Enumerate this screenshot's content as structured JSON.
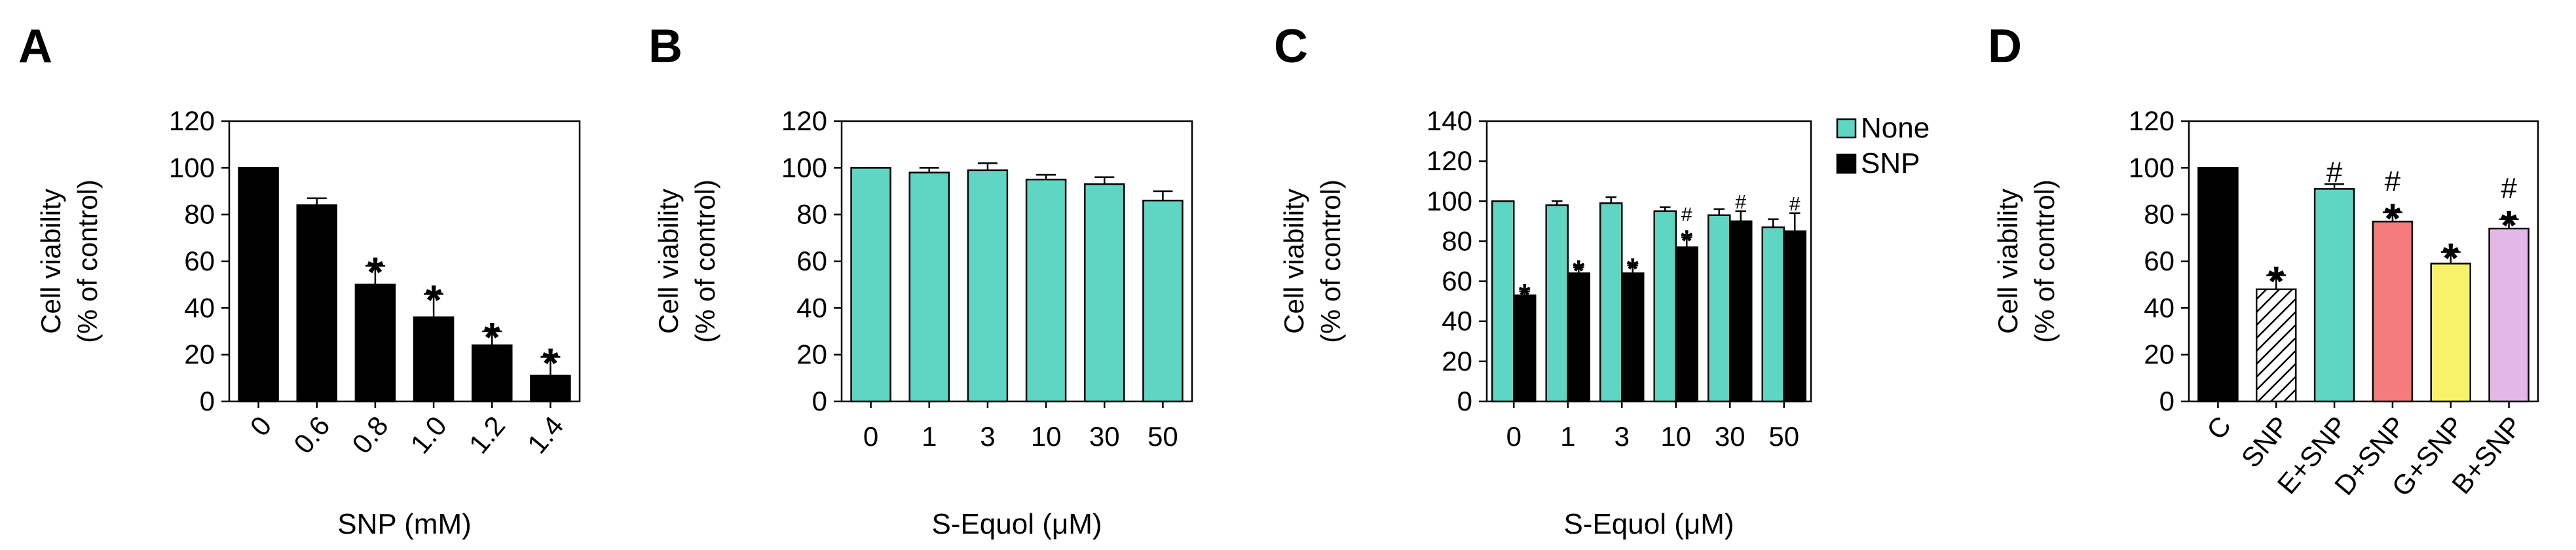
{
  "colors": {
    "black": "#000000",
    "teal": "#5ED6C3",
    "salmon": "#F47C7C",
    "yellow": "#F8F26A",
    "lavender": "#E3B8E8",
    "hatched": "hatched-black-white"
  },
  "chart_data": [
    {
      "panel": "A",
      "type": "bar",
      "ylabel_line1": "Cell viability",
      "ylabel_line2": "(% of control)",
      "xlabel": "SNP (mM)",
      "ylim": [
        0,
        120
      ],
      "yticks": [
        "0",
        "20",
        "40",
        "60",
        "80",
        "100",
        "120"
      ],
      "categories": [
        "0",
        "0.6",
        "0.8",
        "1.0",
        "1.2",
        "1.4"
      ],
      "tick_rotated": true,
      "series": [
        {
          "values": [
            100,
            84,
            50,
            36,
            24,
            11
          ],
          "errors": [
            0,
            3,
            8,
            10,
            6,
            8
          ],
          "fills": [
            "black",
            "black",
            "black",
            "black",
            "black",
            "black"
          ],
          "marks": [
            "",
            "",
            "*",
            "*",
            "*",
            "*"
          ]
        }
      ]
    },
    {
      "panel": "B",
      "type": "bar",
      "ylabel_line1": "Cell viability",
      "ylabel_line2": "(% of control)",
      "xlabel": "S-Equol (μM)",
      "ylim": [
        0,
        120
      ],
      "yticks": [
        "0",
        "20",
        "40",
        "60",
        "80",
        "100",
        "120"
      ],
      "categories": [
        "0",
        "1",
        "3",
        "10",
        "30",
        "50"
      ],
      "tick_rotated": false,
      "series": [
        {
          "values": [
            100,
            98,
            99,
            95,
            93,
            86
          ],
          "errors": [
            0,
            2,
            3,
            2,
            3,
            4
          ],
          "fills": [
            "teal",
            "teal",
            "teal",
            "teal",
            "teal",
            "teal"
          ],
          "marks": [
            "",
            "",
            "",
            "",
            "",
            ""
          ]
        }
      ]
    },
    {
      "panel": "C",
      "type": "bar",
      "ylabel_line1": "Cell viability",
      "ylabel_line2": "(% of control)",
      "xlabel": "S-Equol (μM)",
      "ylim": [
        0,
        140
      ],
      "yticks": [
        "0",
        "20",
        "40",
        "60",
        "80",
        "100",
        "120",
        "140"
      ],
      "categories": [
        "0",
        "1",
        "3",
        "10",
        "30",
        "50"
      ],
      "tick_rotated": false,
      "legend": {
        "position": "top-right-outside",
        "entries": [
          {
            "label": "None",
            "color": "teal"
          },
          {
            "label": "SNP",
            "color": "black"
          }
        ]
      },
      "series": [
        {
          "name": "None",
          "values": [
            100,
            98,
            99,
            95,
            93,
            87
          ],
          "errors": [
            0,
            2,
            3,
            2,
            3,
            4
          ],
          "fills": [
            "teal",
            "teal",
            "teal",
            "teal",
            "teal",
            "teal"
          ],
          "marks": [
            "",
            "",
            "",
            "",
            "",
            ""
          ]
        },
        {
          "name": "SNP",
          "values": [
            53,
            64,
            64,
            77,
            90,
            85
          ],
          "errors": [
            2,
            3,
            4,
            5,
            5,
            9
          ],
          "fills": [
            "black",
            "black",
            "black",
            "black",
            "black",
            "black"
          ],
          "marks": [
            "*",
            "*",
            "*",
            "#*",
            "#",
            "#"
          ]
        }
      ]
    },
    {
      "panel": "D",
      "type": "bar",
      "ylabel_line1": "Cell viability",
      "ylabel_line2": "(% of control)",
      "xlabel": "",
      "ylim": [
        0,
        120
      ],
      "yticks": [
        "0",
        "20",
        "40",
        "60",
        "80",
        "100",
        "120"
      ],
      "categories": [
        "C",
        "SNP",
        "E+SNP",
        "D+SNP",
        "G+SNP",
        "B+SNP"
      ],
      "tick_rotated": true,
      "series": [
        {
          "values": [
            100,
            48,
            91,
            77,
            59,
            74
          ],
          "errors": [
            0,
            6,
            2,
            4,
            5,
            4
          ],
          "fills": [
            "black",
            "hatched",
            "teal",
            "salmon",
            "yellow",
            "lavender"
          ],
          "marks": [
            "",
            "*",
            "#",
            "#*",
            "*",
            "#*"
          ]
        }
      ]
    }
  ]
}
